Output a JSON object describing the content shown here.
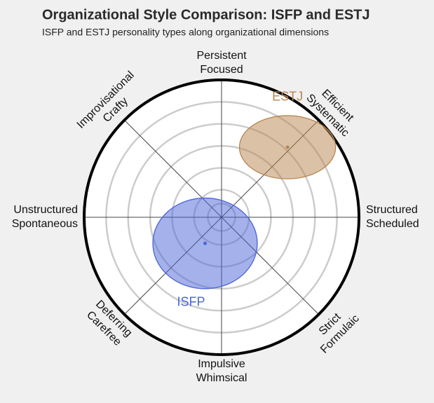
{
  "chart_data": {
    "type": "scatter",
    "title": "Organizational Style Comparison: ISFP and ESTJ",
    "subtitle": "ISFP and ESTJ personality types along organizational dimensions",
    "xlim": [
      -1,
      1
    ],
    "ylim": [
      -1,
      1
    ],
    "grid": true,
    "dimension_labels": [
      [
        "Persistent",
        "Focused"
      ],
      [
        "Efficient",
        "Systematic"
      ],
      [
        "Structured",
        "Scheduled"
      ],
      [
        "Strict",
        "Formulaic"
      ],
      [
        "Impulsive",
        "Whimsical"
      ],
      [
        "Deferring",
        "Carefree"
      ],
      [
        "Unstructured",
        "Spontaneous"
      ],
      [
        "Improvisational",
        "Crafty"
      ]
    ],
    "series": [
      {
        "name": "ESTJ",
        "color": "#b8864f",
        "x": 0.48,
        "y": 0.51,
        "rx": 0.35,
        "ry": 0.23
      },
      {
        "name": "ISFP",
        "color": "#4a64d8",
        "x": -0.12,
        "y": -0.19,
        "rx": 0.38,
        "ry": 0.33
      }
    ]
  }
}
